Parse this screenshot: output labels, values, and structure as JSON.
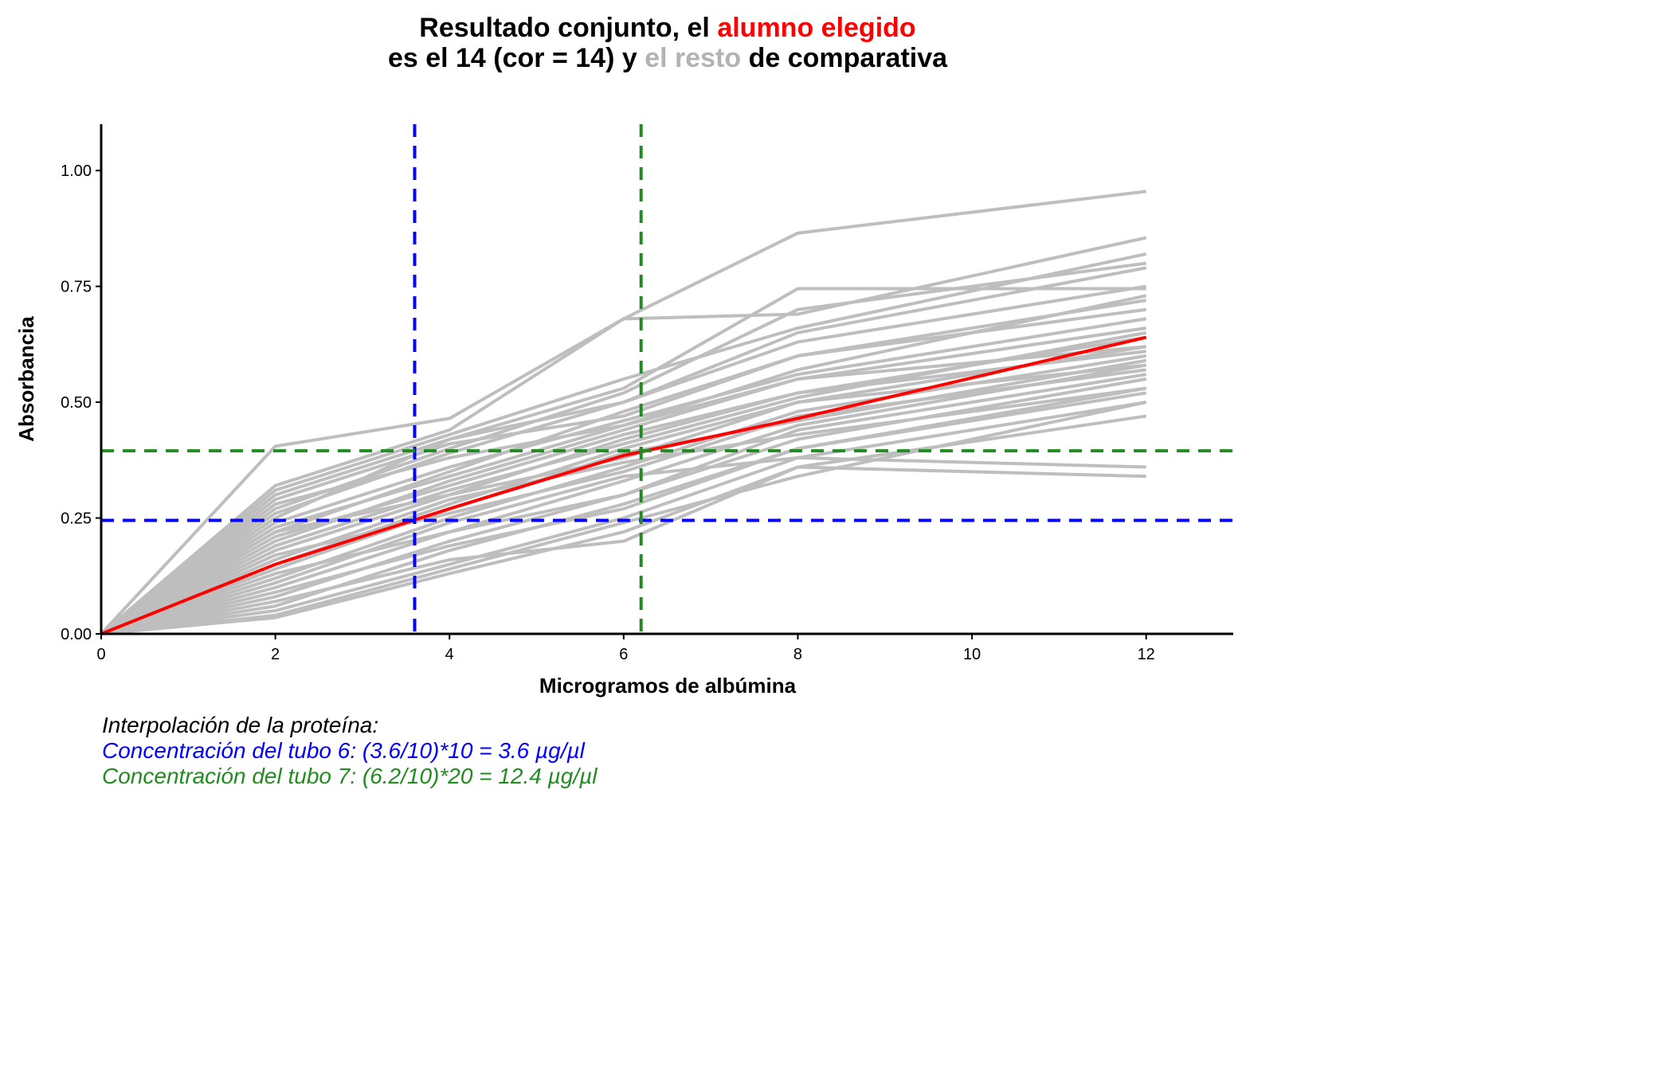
{
  "title": {
    "line1": [
      {
        "text": "Resultado conjunto, el ",
        "color": "#000000"
      },
      {
        "text": "alumno elegido",
        "color": "#ff0000"
      }
    ],
    "line2": [
      {
        "text": "es el 14 (cor = 14) y ",
        "color": "#000000"
      },
      {
        "text": "el resto",
        "color": "#b3b3b3"
      },
      {
        "text": " de comparativa",
        "color": "#000000"
      }
    ]
  },
  "caption": {
    "line1": {
      "text": "Interpolación de la proteína:",
      "color": "#000000"
    },
    "line2": {
      "text": "Concentración del tubo 6: (3.6/10)*10 = 3.6 µg/µl",
      "color": "#0000ff"
    },
    "line3": {
      "text": "Concentración del tubo 7: (6.2/10)*20 = 12.4 µg/µl",
      "color": "#228b22"
    }
  },
  "chart_data": {
    "type": "line",
    "xlabel": "Microgramos de albúmina",
    "ylabel": "Absorbancia",
    "xlim": [
      0,
      13
    ],
    "ylim": [
      0,
      1.1
    ],
    "x_ticks": [
      "0",
      "2",
      "4",
      "6",
      "8",
      "10",
      "12"
    ],
    "y_ticks": [
      "0.00",
      "0.25",
      "0.50",
      "0.75",
      "1.00"
    ],
    "grid": false,
    "x": [
      0,
      2,
      4,
      6,
      8,
      12
    ],
    "highlight": {
      "color": "#ff0000",
      "values": [
        0,
        0.15,
        0.27,
        0.385,
        0.465,
        0.64
      ]
    },
    "others_color": "#bebebe",
    "others": [
      [
        0,
        0.405,
        0.465,
        0.68,
        0.865,
        0.955
      ],
      [
        0,
        0.32,
        0.44,
        0.68,
        0.69,
        0.855
      ],
      [
        0,
        0.3,
        0.42,
        0.53,
        0.745,
        0.745
      ],
      [
        0,
        0.27,
        0.4,
        0.52,
        0.7,
        0.8
      ],
      [
        0,
        0.25,
        0.42,
        0.5,
        0.65,
        0.79
      ],
      [
        0,
        0.22,
        0.35,
        0.48,
        0.6,
        0.72
      ],
      [
        0,
        0.2,
        0.33,
        0.44,
        0.55,
        0.66
      ],
      [
        0,
        0.18,
        0.3,
        0.42,
        0.52,
        0.64
      ],
      [
        0,
        0.15,
        0.28,
        0.4,
        0.5,
        0.62
      ],
      [
        0,
        0.12,
        0.25,
        0.36,
        0.48,
        0.6
      ],
      [
        0,
        0.1,
        0.22,
        0.33,
        0.45,
        0.58
      ],
      [
        0,
        0.08,
        0.2,
        0.3,
        0.42,
        0.55
      ],
      [
        0,
        0.06,
        0.18,
        0.28,
        0.4,
        0.53
      ],
      [
        0,
        0.05,
        0.15,
        0.25,
        0.38,
        0.5
      ],
      [
        0,
        0.035,
        0.13,
        0.22,
        0.36,
        0.47
      ],
      [
        0,
        0.28,
        0.38,
        0.45,
        0.55,
        0.62
      ],
      [
        0,
        0.22,
        0.3,
        0.38,
        0.5,
        0.58
      ],
      [
        0,
        0.17,
        0.26,
        0.35,
        0.47,
        0.57
      ],
      [
        0,
        0.13,
        0.22,
        0.3,
        0.44,
        0.56
      ],
      [
        0,
        0.09,
        0.19,
        0.27,
        0.4,
        0.52
      ],
      [
        0,
        0.07,
        0.16,
        0.2,
        0.36,
        0.34
      ],
      [
        0,
        0.11,
        0.24,
        0.34,
        0.38,
        0.36
      ],
      [
        0,
        0.16,
        0.29,
        0.37,
        0.43,
        0.53
      ],
      [
        0,
        0.24,
        0.36,
        0.46,
        0.56,
        0.68
      ],
      [
        0,
        0.26,
        0.39,
        0.5,
        0.63,
        0.75
      ],
      [
        0,
        0.31,
        0.43,
        0.55,
        0.66,
        0.82
      ],
      [
        0,
        0.29,
        0.41,
        0.47,
        0.6,
        0.7
      ],
      [
        0,
        0.21,
        0.32,
        0.43,
        0.52,
        0.61
      ],
      [
        0,
        0.14,
        0.27,
        0.39,
        0.46,
        0.59
      ],
      [
        0,
        0.19,
        0.31,
        0.41,
        0.51,
        0.65
      ],
      [
        0,
        0.23,
        0.34,
        0.45,
        0.57,
        0.73
      ],
      [
        0,
        0.04,
        0.14,
        0.24,
        0.34,
        0.5
      ]
    ],
    "reference_lines": [
      {
        "axis": "x",
        "value": 3.6,
        "color": "#0000ff"
      },
      {
        "axis": "y",
        "value": 0.245,
        "color": "#0000ff"
      },
      {
        "axis": "x",
        "value": 6.2,
        "color": "#228b22"
      },
      {
        "axis": "y",
        "value": 0.395,
        "color": "#228b22"
      }
    ]
  }
}
